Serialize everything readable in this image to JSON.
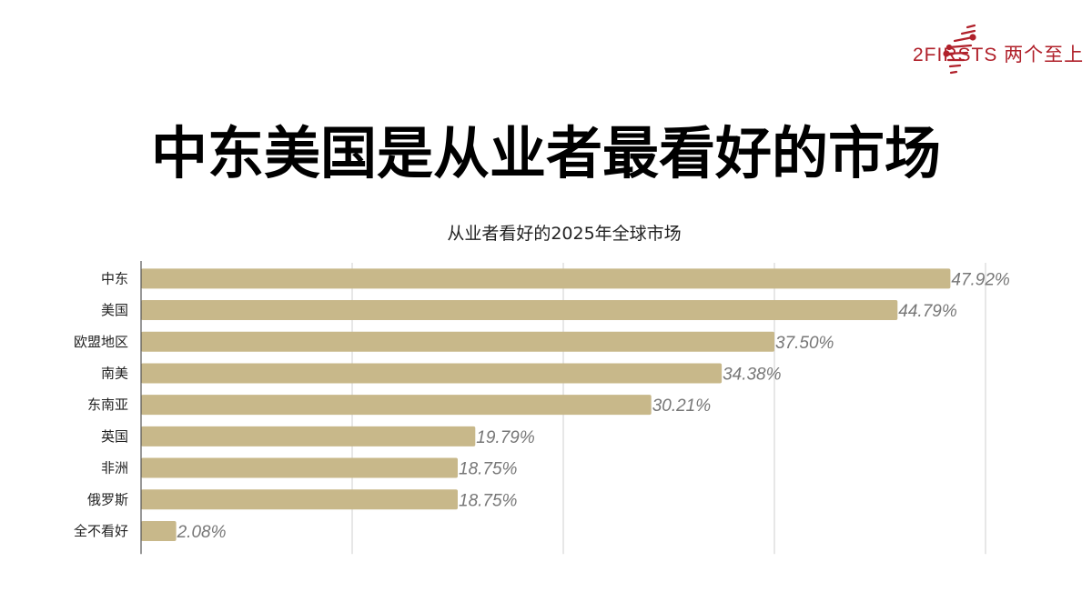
{
  "logo": {
    "text": "2FIRSTS 两个至上",
    "color": "#b0202a"
  },
  "title": "中东美国是从业者最看好的市场",
  "chart_data": {
    "type": "bar",
    "orientation": "horizontal",
    "title": "从业者看好的2025年全球市场",
    "categories": [
      "中东",
      "美国",
      "欧盟地区",
      "南美",
      "东南亚",
      "英国",
      "非洲",
      "俄罗斯",
      "全不看好"
    ],
    "values": [
      47.92,
      44.79,
      37.5,
      34.38,
      30.21,
      19.79,
      18.75,
      18.75,
      2.08
    ],
    "labels": [
      "47.92%",
      "44.79%",
      "37.50%",
      "34.38%",
      "30.21%",
      "19.79%",
      "18.75%",
      "18.75%",
      "2.08%"
    ],
    "xlim": [
      0,
      50
    ],
    "grid_step": 12.5,
    "grid": true,
    "bar_color": "#c8b88a",
    "xlabel": "",
    "ylabel": ""
  }
}
